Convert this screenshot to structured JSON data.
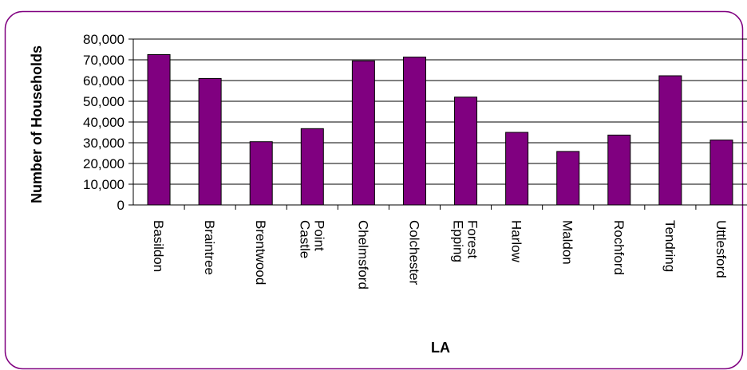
{
  "chart_data": {
    "type": "bar",
    "title": "",
    "xlabel": "LA",
    "ylabel": "Number of Households",
    "categories": [
      [
        "Basildon"
      ],
      [
        "Braintree"
      ],
      [
        "Brentwood"
      ],
      [
        "Castle",
        "Point"
      ],
      [
        "Chelmsford"
      ],
      [
        "Colchester"
      ],
      [
        "Epping",
        "Forest"
      ],
      [
        "Harlow"
      ],
      [
        "Maldon"
      ],
      [
        "Rochford"
      ],
      [
        "Tendring"
      ],
      [
        "Uttlesford"
      ]
    ],
    "values": [
      72500,
      61000,
      30500,
      36800,
      69500,
      71300,
      52000,
      35000,
      25800,
      33700,
      62300,
      31300
    ],
    "ylim": [
      0,
      80000
    ],
    "yticks": [
      0,
      10000,
      20000,
      30000,
      40000,
      50000,
      60000,
      70000,
      80000
    ],
    "ytick_labels": [
      "0",
      "10,000",
      "20,000",
      "30,000",
      "40,000",
      "50,000",
      "60,000",
      "70,000",
      "80,000"
    ],
    "grid": true,
    "legend": "none",
    "colors": {
      "bar_fill": "#800080",
      "bar_stroke": "#000000",
      "frame": "#800080",
      "gridline": "#000000"
    }
  }
}
